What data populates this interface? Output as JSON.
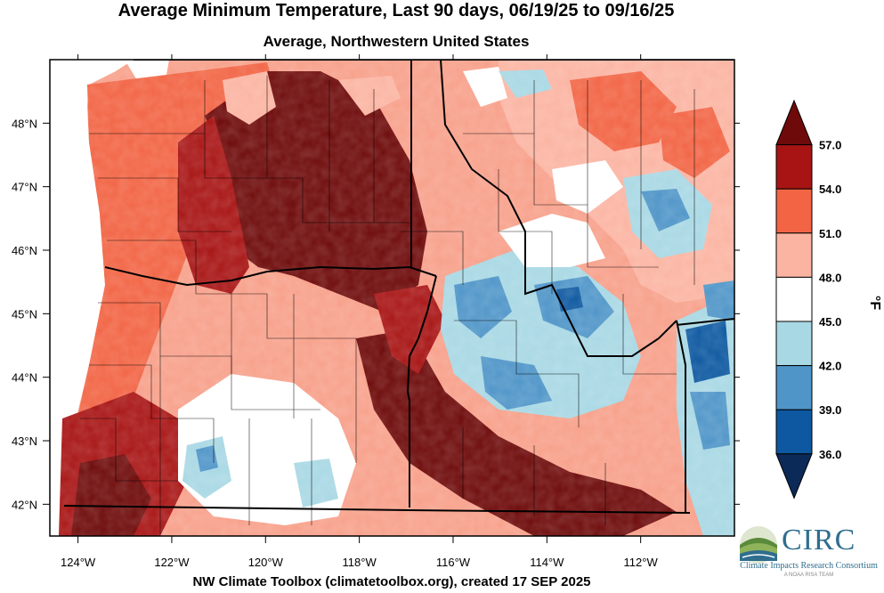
{
  "title": "Average Minimum Temperature, Last 90 days, 06/19/25 to 09/16/25",
  "subtitle": "Average, Northwestern United States",
  "footer": "NW Climate Toolbox (climatetoolbox.org), created 17 SEP 2025",
  "map": {
    "lon_range": [
      -124.6,
      -110.0
    ],
    "lat_range": [
      41.5,
      49.0
    ],
    "lon_ticks": [
      "124°W",
      "122°W",
      "120°W",
      "118°W",
      "116°W",
      "114°W",
      "112°W"
    ],
    "lon_tick_values": [
      -124,
      -122,
      -120,
      -118,
      -116,
      -114,
      -112
    ],
    "lat_ticks": [
      "48°N",
      "47°N",
      "46°N",
      "45°N",
      "44°N",
      "43°N",
      "42°N"
    ],
    "lat_tick_values": [
      48,
      47,
      46,
      45,
      44,
      43,
      42
    ]
  },
  "legend": {
    "units": "°F",
    "labels": [
      "57.0",
      "54.0",
      "51.0",
      "48.0",
      "45.0",
      "42.0",
      "39.0",
      "36.0"
    ],
    "colors": [
      "#6e0a0a",
      "#a81414",
      "#f26444",
      "#fbb4a2",
      "#ffffff",
      "#a8d8e4",
      "#4f95c8",
      "#0d58a0",
      "#0c2a58"
    ]
  },
  "logo": {
    "name": "CIRC",
    "tagline": "Climate Impacts Research Consortium",
    "tagline2": "A NOAA RISA TEAM"
  }
}
